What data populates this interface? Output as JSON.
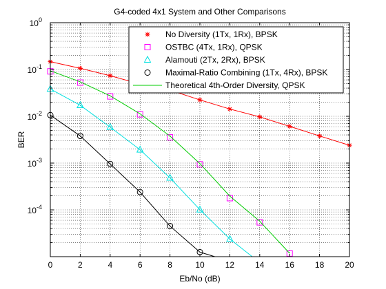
{
  "chart_data": {
    "type": "line",
    "title": "G4-coded 4x1 System and Other Comparisons",
    "xlabel": "Eb/No (dB)",
    "ylabel": "BER",
    "xlim": [
      0,
      20
    ],
    "ylim": [
      1e-05,
      1
    ],
    "yscale": "log",
    "grid": true,
    "legend_position": "top-right",
    "x_ticks": [
      "0",
      "2",
      "4",
      "6",
      "8",
      "10",
      "12",
      "14",
      "16",
      "18",
      "20"
    ],
    "y_ticks": [
      {
        "base": "10",
        "exp": "0",
        "value": 1
      },
      {
        "base": "10",
        "exp": "-1",
        "value": 0.1
      },
      {
        "base": "10",
        "exp": "-2",
        "value": 0.01
      },
      {
        "base": "10",
        "exp": "-3",
        "value": 0.001
      },
      {
        "base": "10",
        "exp": "-4",
        "value": 0.0001
      }
    ],
    "series": [
      {
        "name": "No Diversity (1Tx, 1Rx), BPSK",
        "color": "#ff0000",
        "marker": "star",
        "line": true,
        "x": [
          0,
          2,
          4,
          6,
          8,
          10,
          12,
          14,
          16,
          18,
          20
        ],
        "values": [
          0.147,
          0.106,
          0.0737,
          0.0488,
          0.0363,
          0.0224,
          0.0143,
          0.0097,
          0.0061,
          0.0038,
          0.0024
        ]
      },
      {
        "name": "OSTBC (4Tx, 1Rx), QPSK",
        "color": "#ff00ff",
        "marker": "square",
        "line": false,
        "x": [
          0,
          2,
          4,
          6,
          8,
          10,
          12,
          14,
          16
        ],
        "values": [
          0.0912,
          0.0525,
          0.0266,
          0.011,
          0.00355,
          0.00094,
          0.000178,
          5.41e-05,
          1.17e-05
        ]
      },
      {
        "name": "Alamouti (2Tx, 2Rx), BPSK",
        "color": "#00e0e0",
        "marker": "triangle",
        "line": true,
        "x": [
          0,
          2,
          4,
          6,
          8,
          10,
          12,
          13.5
        ],
        "values": [
          0.0383,
          0.0172,
          0.00586,
          0.00193,
          0.000483,
          0.000101,
          2.39e-05,
          1e-05
        ]
      },
      {
        "name": "Maximal-Ratio Combining (1Tx, 4Rx), BPSK",
        "color": "#000000",
        "marker": "circle",
        "line": true,
        "x": [
          0,
          2,
          4,
          6,
          8,
          10,
          11
        ],
        "values": [
          0.0106,
          0.0038,
          0.00096,
          0.00024,
          4.51e-05,
          1.25e-05,
          1e-05
        ]
      },
      {
        "name": "Theoretical 4th-Order Diversity, QPSK",
        "color": "#00cc00",
        "marker": "none",
        "line": true,
        "x": [
          0,
          2,
          4,
          6,
          8,
          10,
          12,
          14,
          16
        ],
        "values": [
          0.094,
          0.0545,
          0.0273,
          0.0113,
          0.00378,
          0.000976,
          0.000197,
          5.71e-05,
          1.18e-05
        ]
      }
    ]
  }
}
